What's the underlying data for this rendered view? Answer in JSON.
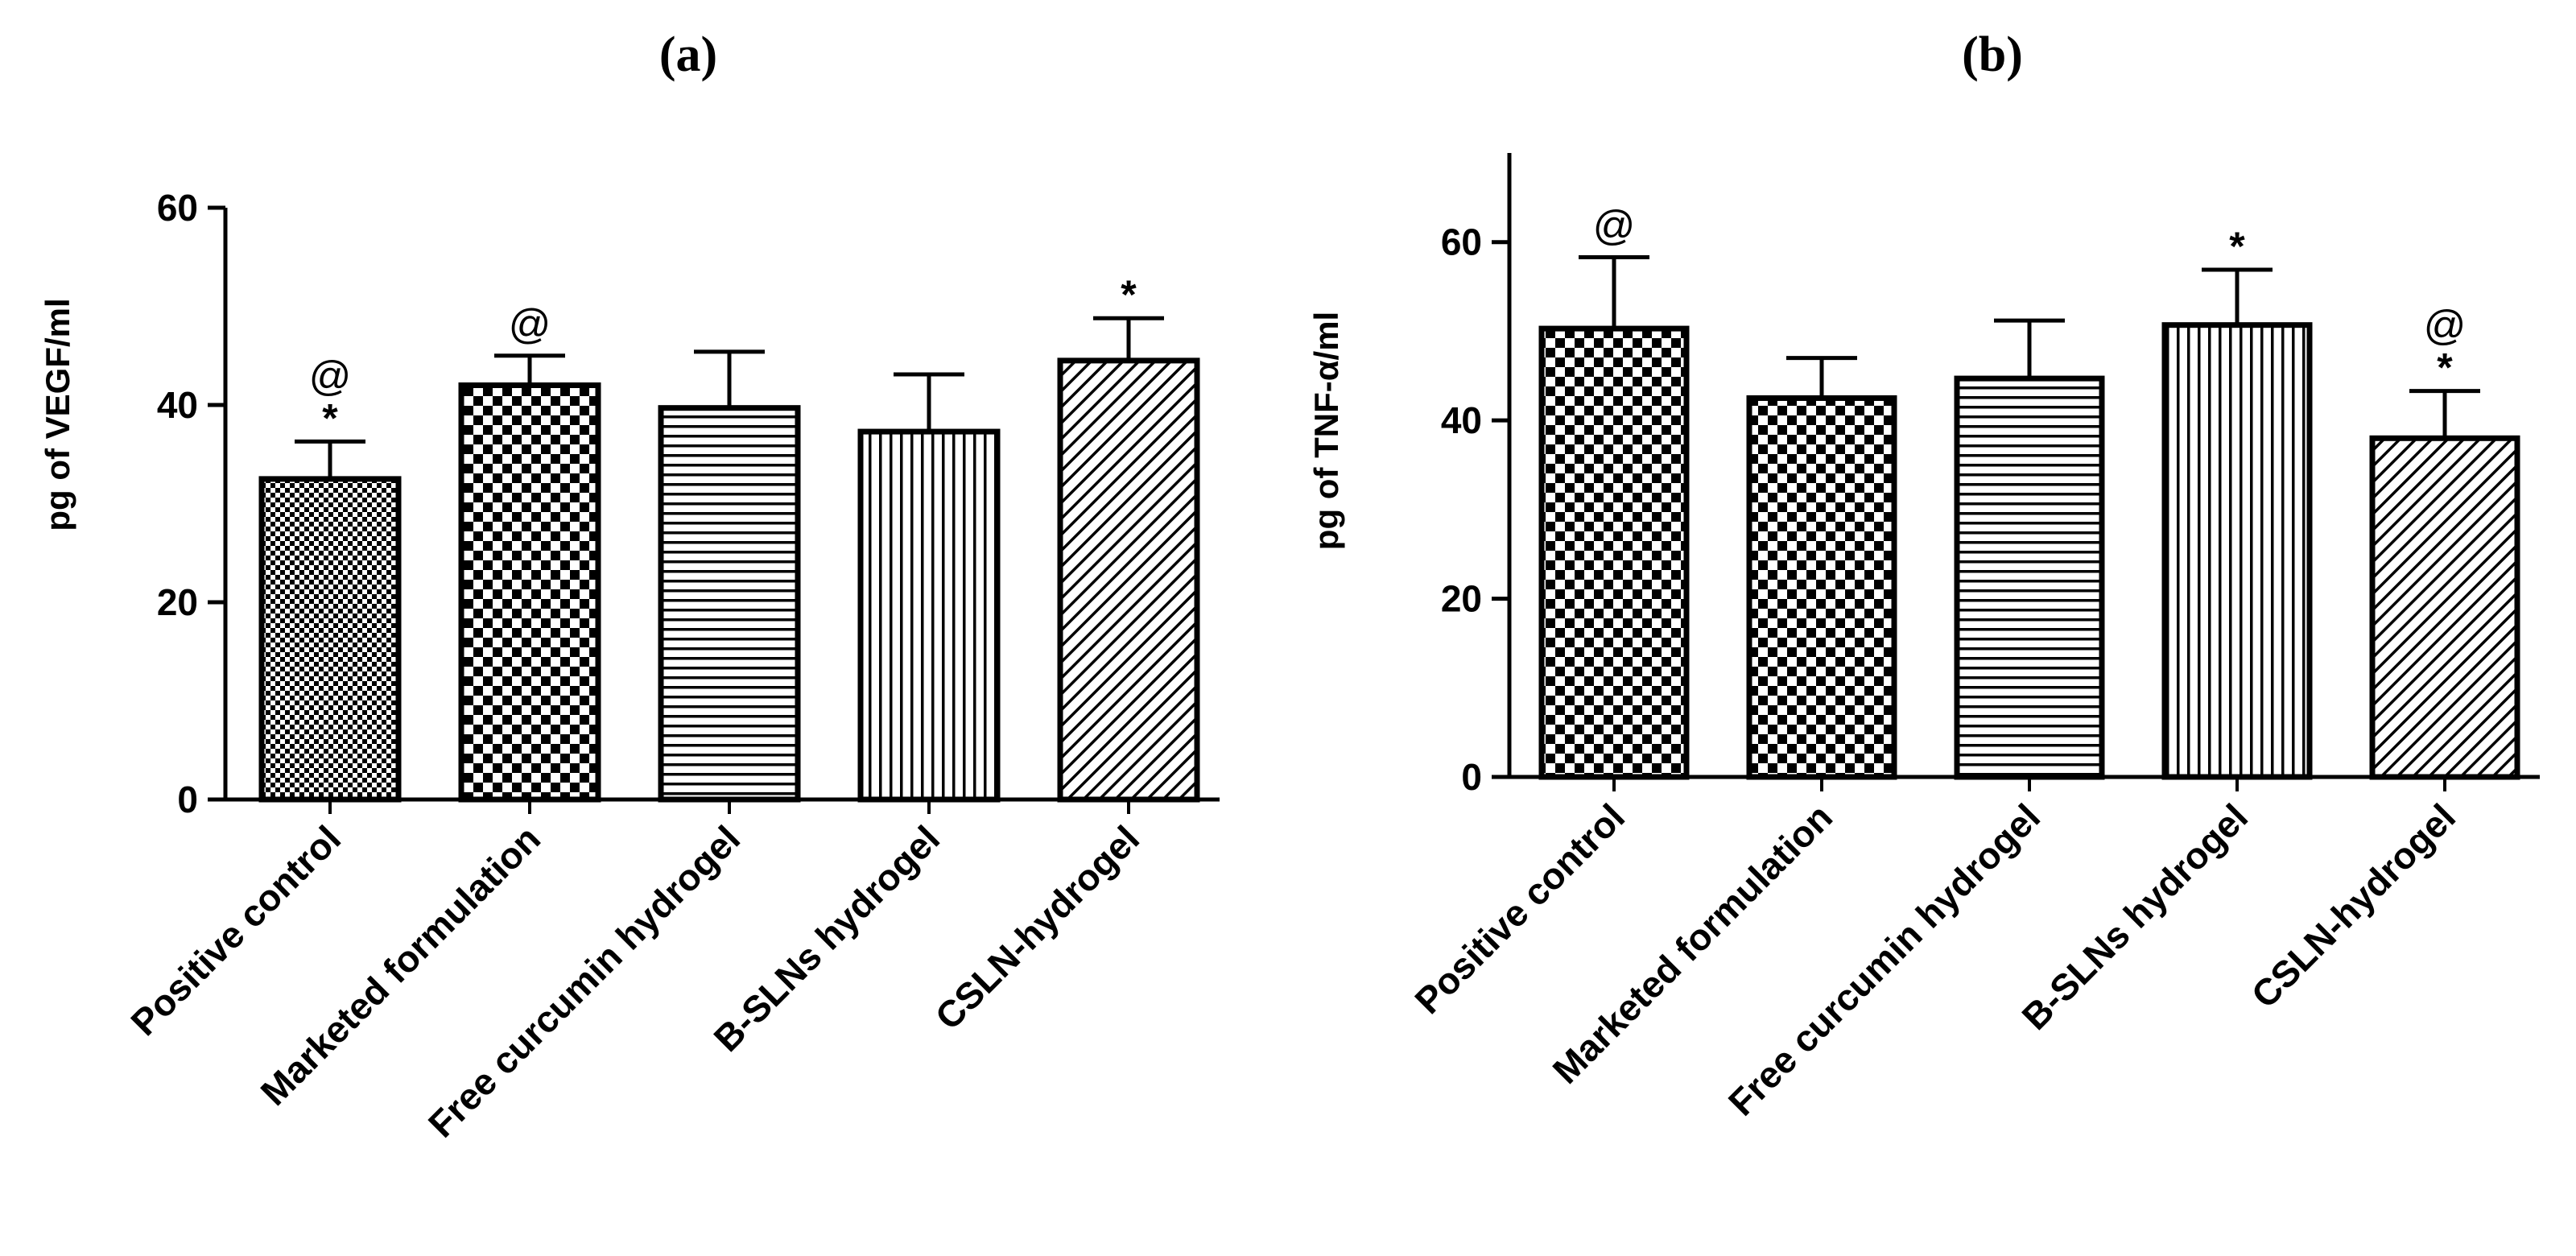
{
  "chart_data": [
    {
      "type": "bar",
      "panel_label": "(a)",
      "categories": [
        "Positive control",
        "Marketed formulation",
        "Free curcumin hydrogel",
        "B-SLNs hydrogel",
        "CSLN-hydrogel"
      ],
      "values": [
        32.5,
        42,
        39.7,
        37.3,
        44.5
      ],
      "errors": [
        3.8,
        3.0,
        5.7,
        5.8,
        4.3
      ],
      "annotations": [
        [
          "@",
          "*"
        ],
        [
          "@"
        ],
        [],
        [],
        [
          "*"
        ]
      ],
      "patterns": [
        "fine-check",
        "checker",
        "hlines",
        "vlines",
        "diagonal"
      ],
      "xlabel": "",
      "ylabel": "pg of VEGF/ml",
      "ylim": [
        0,
        60
      ],
      "yticks": [
        0,
        20,
        40,
        60
      ],
      "grid": false
    },
    {
      "type": "bar",
      "panel_label": "(b)",
      "categories": [
        "Positive control",
        "Marketed formulation",
        "Free curcumin hydrogel",
        "B-SLNs hydrogel",
        "CSLN-hydrogel"
      ],
      "values": [
        50.3,
        42.5,
        44.7,
        50.7,
        38
      ],
      "errors": [
        8.0,
        4.5,
        6.5,
        6.2,
        5.3
      ],
      "annotations": [
        [
          "@"
        ],
        [],
        [],
        [
          "*"
        ],
        [
          "@",
          "*"
        ]
      ],
      "patterns": [
        "checker",
        "checker",
        "hlines",
        "vlines",
        "diagonal"
      ],
      "xlabel": "",
      "ylabel": "pg of TNF-α/ml",
      "ylim": [
        0,
        70
      ],
      "yticks": [
        0,
        20,
        40,
        60
      ],
      "grid": false
    }
  ]
}
